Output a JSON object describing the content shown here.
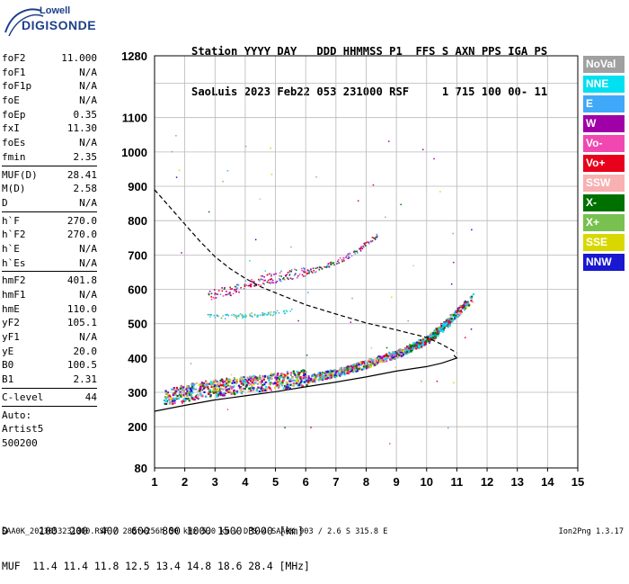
{
  "logo": {
    "top": "Lowell",
    "bottom": "DIGISONDE"
  },
  "header": {
    "line1": "Station YYYY DAY   DDD HHMMSS P1  FFS S AXN PPS IGA PS",
    "line2": "SaoLuis 2023 Feb22 053 231000 RSF     1 715 100 00- 11"
  },
  "params": {
    "group1": [
      {
        "name": "foF2",
        "value": "11.000"
      },
      {
        "name": "foF1",
        "value": "N/A"
      },
      {
        "name": "foF1p",
        "value": "N/A"
      },
      {
        "name": "foE",
        "value": "N/A"
      },
      {
        "name": "foEp",
        "value": "0.35"
      },
      {
        "name": "fxI",
        "value": "11.30"
      },
      {
        "name": "foEs",
        "value": "N/A"
      },
      {
        "name": "fmin",
        "value": "2.35"
      }
    ],
    "group2": [
      {
        "name": "MUF(D)",
        "value": "28.41"
      },
      {
        "name": "M(D)",
        "value": "2.58"
      },
      {
        "name": "D",
        "value": "N/A"
      }
    ],
    "group3": [
      {
        "name": "h`F",
        "value": "270.0"
      },
      {
        "name": "h`F2",
        "value": "270.0"
      },
      {
        "name": "h`E",
        "value": "N/A"
      },
      {
        "name": "h`Es",
        "value": "N/A"
      }
    ],
    "group4": [
      {
        "name": "hmF2",
        "value": "401.8"
      },
      {
        "name": "hmF1",
        "value": "N/A"
      },
      {
        "name": "hmE",
        "value": "110.0"
      },
      {
        "name": "yF2",
        "value": "105.1"
      },
      {
        "name": "yF1",
        "value": "N/A"
      },
      {
        "name": "yE",
        "value": "20.0"
      },
      {
        "name": "B0",
        "value": "100.5"
      },
      {
        "name": "B1",
        "value": "2.31"
      }
    ],
    "group5": [
      {
        "name": "C-level",
        "value": "44"
      }
    ],
    "auto_lines": [
      "Auto:",
      "Artist5",
      "500200"
    ]
  },
  "legend": [
    {
      "label": "NoVal",
      "color": "#a0a0a0"
    },
    {
      "label": "NNE",
      "color": "#00e0f0"
    },
    {
      "label": "E",
      "color": "#40a8f8"
    },
    {
      "label": "W",
      "color": "#a000a8"
    },
    {
      "label": "Vo-",
      "color": "#f048b0"
    },
    {
      "label": "Vo+",
      "color": "#e8001c"
    },
    {
      "label": "SSW",
      "color": "#f8b0b0"
    },
    {
      "label": "X-",
      "color": "#007000"
    },
    {
      "label": "X+",
      "color": "#78c050"
    },
    {
      "label": "SSE",
      "color": "#d8d800"
    },
    {
      "label": "NNW",
      "color": "#1818d0"
    }
  ],
  "bottom": {
    "line1": "D     100  200  400  600  800 1000 1500 3000 [km]",
    "line2": "MUF  11.4 11.4 11.8 12.5 13.4 14.8 18.6 28.4 [MHz]"
  },
  "footer": "SAA0K_2023053231000.RSF / 280fx256h 50 kHz 5.0 km / DPS-4 SAA0K 903 / 2.6 S 315.8 E",
  "version": "Ion2Png 1.3.17",
  "chart_data": {
    "type": "scatter",
    "xlim": [
      1,
      15
    ],
    "ylim": [
      80,
      1280
    ],
    "xticks": [
      1,
      2,
      3,
      4,
      5,
      6,
      7,
      8,
      9,
      10,
      11,
      12,
      13,
      14,
      15
    ],
    "yticks": [
      80,
      200,
      300,
      400,
      500,
      600,
      700,
      800,
      900,
      1000,
      1100,
      1280
    ],
    "grid": true,
    "profile_solid": [
      [
        1.0,
        245
      ],
      [
        2,
        262
      ],
      [
        3,
        278
      ],
      [
        4,
        290
      ],
      [
        5,
        302
      ],
      [
        6,
        316
      ],
      [
        7,
        330
      ],
      [
        8,
        345
      ],
      [
        9,
        362
      ],
      [
        10,
        375
      ],
      [
        10.5,
        385
      ],
      [
        11.0,
        400
      ],
      [
        10.9,
        408
      ]
    ],
    "profile_dashed": [
      [
        1.0,
        890
      ],
      [
        1.5,
        840
      ],
      [
        2.0,
        790
      ],
      [
        2.5,
        740
      ],
      [
        3.0,
        695
      ],
      [
        3.5,
        660
      ],
      [
        4.0,
        632
      ],
      [
        4.5,
        608
      ],
      [
        5.0,
        590
      ],
      [
        6.0,
        555
      ],
      [
        7.0,
        528
      ],
      [
        8.0,
        502
      ],
      [
        9.0,
        482
      ],
      [
        10.0,
        460
      ],
      [
        10.5,
        440
      ],
      [
        11.0,
        415
      ]
    ],
    "echo_f2_o": [
      [
        1.3,
        280
      ],
      [
        2,
        292
      ],
      [
        3,
        305
      ],
      [
        4,
        315
      ],
      [
        5,
        325
      ],
      [
        6,
        335
      ],
      [
        7,
        355
      ],
      [
        8,
        380
      ],
      [
        9,
        410
      ],
      [
        10,
        450
      ],
      [
        10.5,
        490
      ],
      [
        11,
        530
      ],
      [
        11.5,
        575
      ]
    ],
    "echo_f2_x": [
      [
        9.3,
        420
      ],
      [
        9.8,
        440
      ],
      [
        10.3,
        470
      ],
      [
        10.8,
        510
      ]
    ],
    "echo_multi2": [
      [
        2.8,
        580
      ],
      [
        3.5,
        590
      ],
      [
        4.5,
        620
      ],
      [
        5.5,
        640
      ],
      [
        6.5,
        660
      ],
      [
        7.5,
        700
      ],
      [
        8.4,
        760
      ]
    ],
    "echo_band_low": [
      [
        2.7,
        520
      ],
      [
        3.5,
        520
      ],
      [
        4.5,
        525
      ],
      [
        5.5,
        535
      ]
    ]
  }
}
